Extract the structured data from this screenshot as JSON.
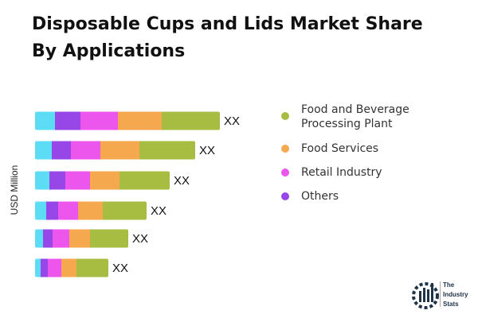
{
  "chart_data": {
    "type": "bar",
    "orientation": "horizontal",
    "stacked": true,
    "title": "Disposable Cups and Lids Market Share By Applications",
    "ylabel": "USD Million",
    "data_labels": [
      "XX",
      "XX",
      "XX",
      "XX",
      "XX",
      "XX"
    ],
    "series": [
      {
        "color": "#5ddcf5",
        "values": [
          25,
          21,
          18,
          14,
          10,
          7
        ]
      },
      {
        "name": "Others",
        "color": "#9747e8",
        "values": [
          32,
          24,
          20,
          15,
          12,
          9
        ]
      },
      {
        "name": "Retail Industry",
        "color": "#ed56ec",
        "values": [
          47,
          37,
          31,
          25,
          21,
          17
        ]
      },
      {
        "name": "Food Services",
        "color": "#f5a84d",
        "values": [
          55,
          49,
          37,
          31,
          26,
          19
        ]
      },
      {
        "name": "Food and Beverage Processing Plant",
        "color": "#a6bd42",
        "values": [
          73,
          70,
          63,
          55,
          48,
          40
        ]
      }
    ],
    "grid": false,
    "legend_position": "right"
  },
  "legend": [
    {
      "label": "Food and Beverage\nProcessing Plant",
      "color": "#a6bd42"
    },
    {
      "label": "Food Services",
      "color": "#f5a84d"
    },
    {
      "label": "Retail Industry",
      "color": "#ed56ec"
    },
    {
      "label": "Others",
      "color": "#9747e8"
    }
  ],
  "logo": {
    "text": [
      "The",
      "Industry",
      "Stats"
    ]
  }
}
